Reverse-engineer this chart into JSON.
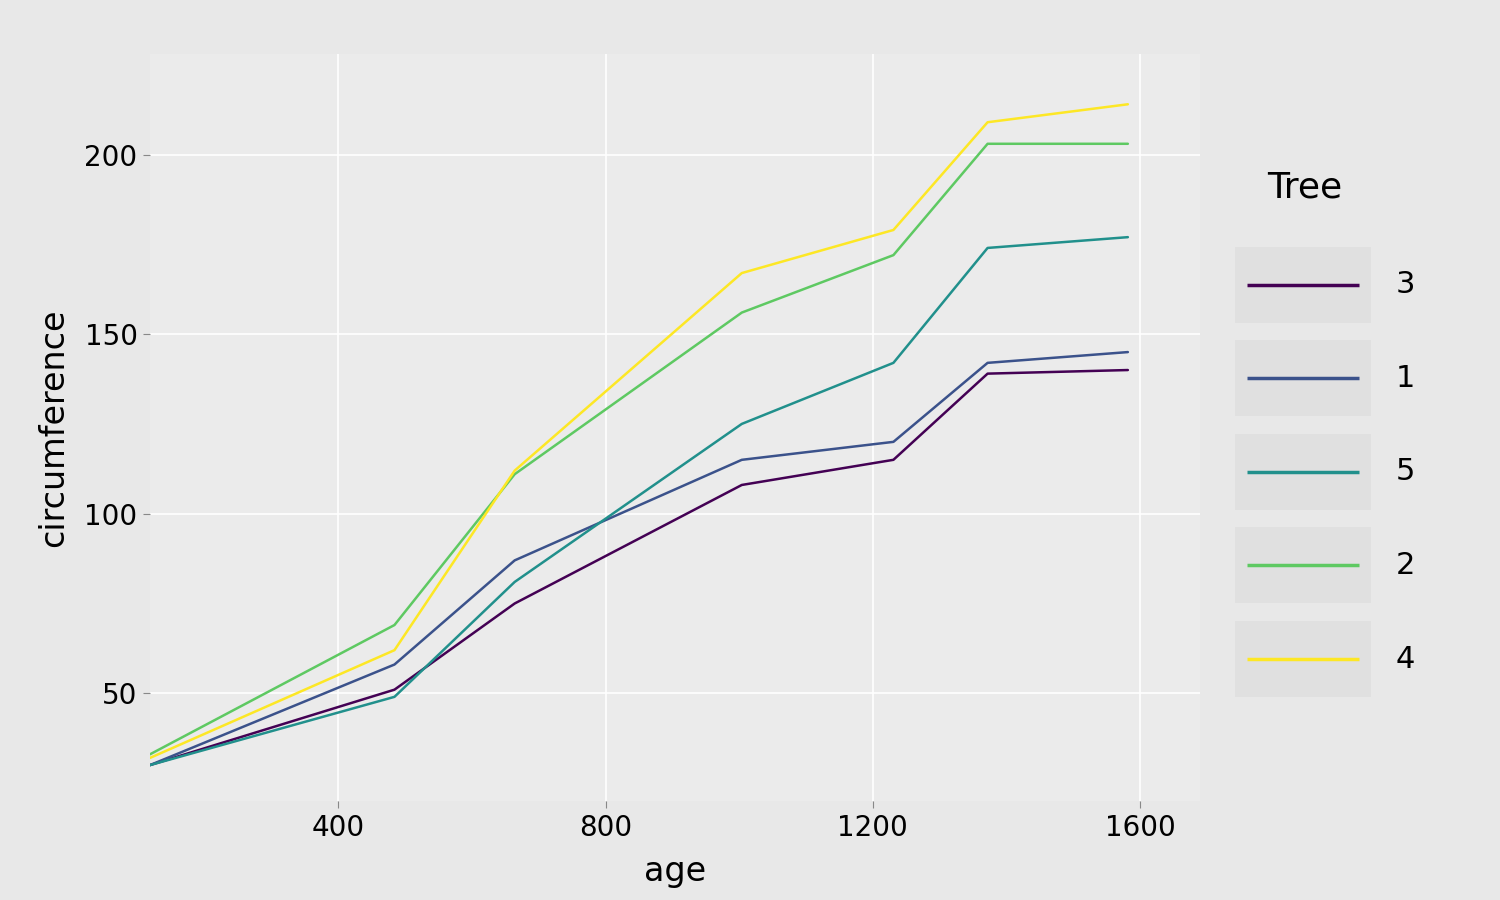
{
  "trees": {
    "1": {
      "age": [
        118,
        484,
        664,
        1004,
        1231,
        1372,
        1582
      ],
      "circumference": [
        30,
        58,
        87,
        115,
        120,
        142,
        145
      ]
    },
    "2": {
      "age": [
        118,
        484,
        664,
        1004,
        1231,
        1372,
        1582
      ],
      "circumference": [
        33,
        69,
        111,
        156,
        172,
        203,
        203
      ]
    },
    "3": {
      "age": [
        118,
        484,
        664,
        1004,
        1231,
        1372,
        1582
      ],
      "circumference": [
        30,
        51,
        75,
        108,
        115,
        139,
        140
      ]
    },
    "4": {
      "age": [
        118,
        484,
        664,
        1004,
        1231,
        1372,
        1582
      ],
      "circumference": [
        32,
        62,
        112,
        167,
        179,
        209,
        214
      ]
    },
    "5": {
      "age": [
        118,
        484,
        664,
        1004,
        1231,
        1372,
        1582
      ],
      "circumference": [
        30,
        49,
        81,
        125,
        142,
        174,
        177
      ]
    }
  },
  "legend_order": [
    "3",
    "1",
    "5",
    "2",
    "4"
  ],
  "colors": {
    "1": "#3b528b",
    "2": "#5ec962",
    "3": "#440154",
    "4": "#fde725",
    "5": "#21908c"
  },
  "xlabel": "age",
  "ylabel": "circumference",
  "legend_title": "Tree",
  "fig_bg": "#e8e8e8",
  "panel_bg": "#e8e8e8",
  "plot_bg": "#ebebeb",
  "grid_color": "#ffffff",
  "xticks": [
    400,
    800,
    1200,
    1600
  ],
  "yticks": [
    50,
    100,
    150,
    200
  ],
  "xlim": [
    118,
    1690
  ],
  "ylim": [
    20,
    228
  ],
  "line_width": 1.8,
  "legend_box_color": "#e0e0e0",
  "tick_label_size": 20,
  "axis_label_size": 24,
  "legend_title_size": 26,
  "legend_item_size": 22
}
